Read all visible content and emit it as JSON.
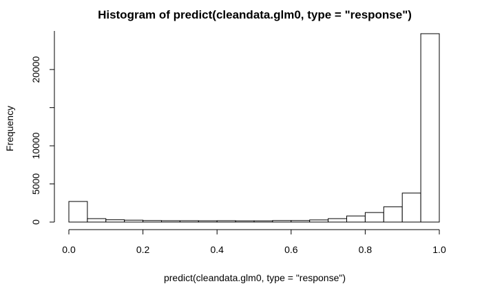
{
  "chart_data": {
    "type": "bar",
    "title": "Histogram of predict(cleandata.glm0, type = \"response\")",
    "xlabel": "predict(cleandata.glm0, type = \"response\")",
    "ylabel": "Frequency",
    "bin_edges": [
      0.0,
      0.05,
      0.1,
      0.15,
      0.2,
      0.25,
      0.3,
      0.35,
      0.4,
      0.45,
      0.5,
      0.55,
      0.6,
      0.65,
      0.7,
      0.75,
      0.8,
      0.85,
      0.9,
      0.95,
      1.0
    ],
    "values": [
      2700,
      450,
      300,
      250,
      200,
      180,
      180,
      170,
      180,
      160,
      160,
      200,
      200,
      280,
      450,
      800,
      1250,
      2000,
      3800,
      24700
    ],
    "xlim": [
      0,
      1
    ],
    "ylim": [
      0,
      24700
    ],
    "x_ticks": [
      0.0,
      0.2,
      0.4,
      0.6,
      0.8,
      1.0
    ],
    "x_tick_labels": [
      "0.0",
      "0.2",
      "0.4",
      "0.6",
      "0.8",
      "1.0"
    ],
    "y_ticks": [
      0,
      5000,
      10000,
      15000,
      20000
    ],
    "y_tick_labels": [
      "0",
      "5000",
      "10000",
      "",
      "20000"
    ],
    "grid": false
  }
}
